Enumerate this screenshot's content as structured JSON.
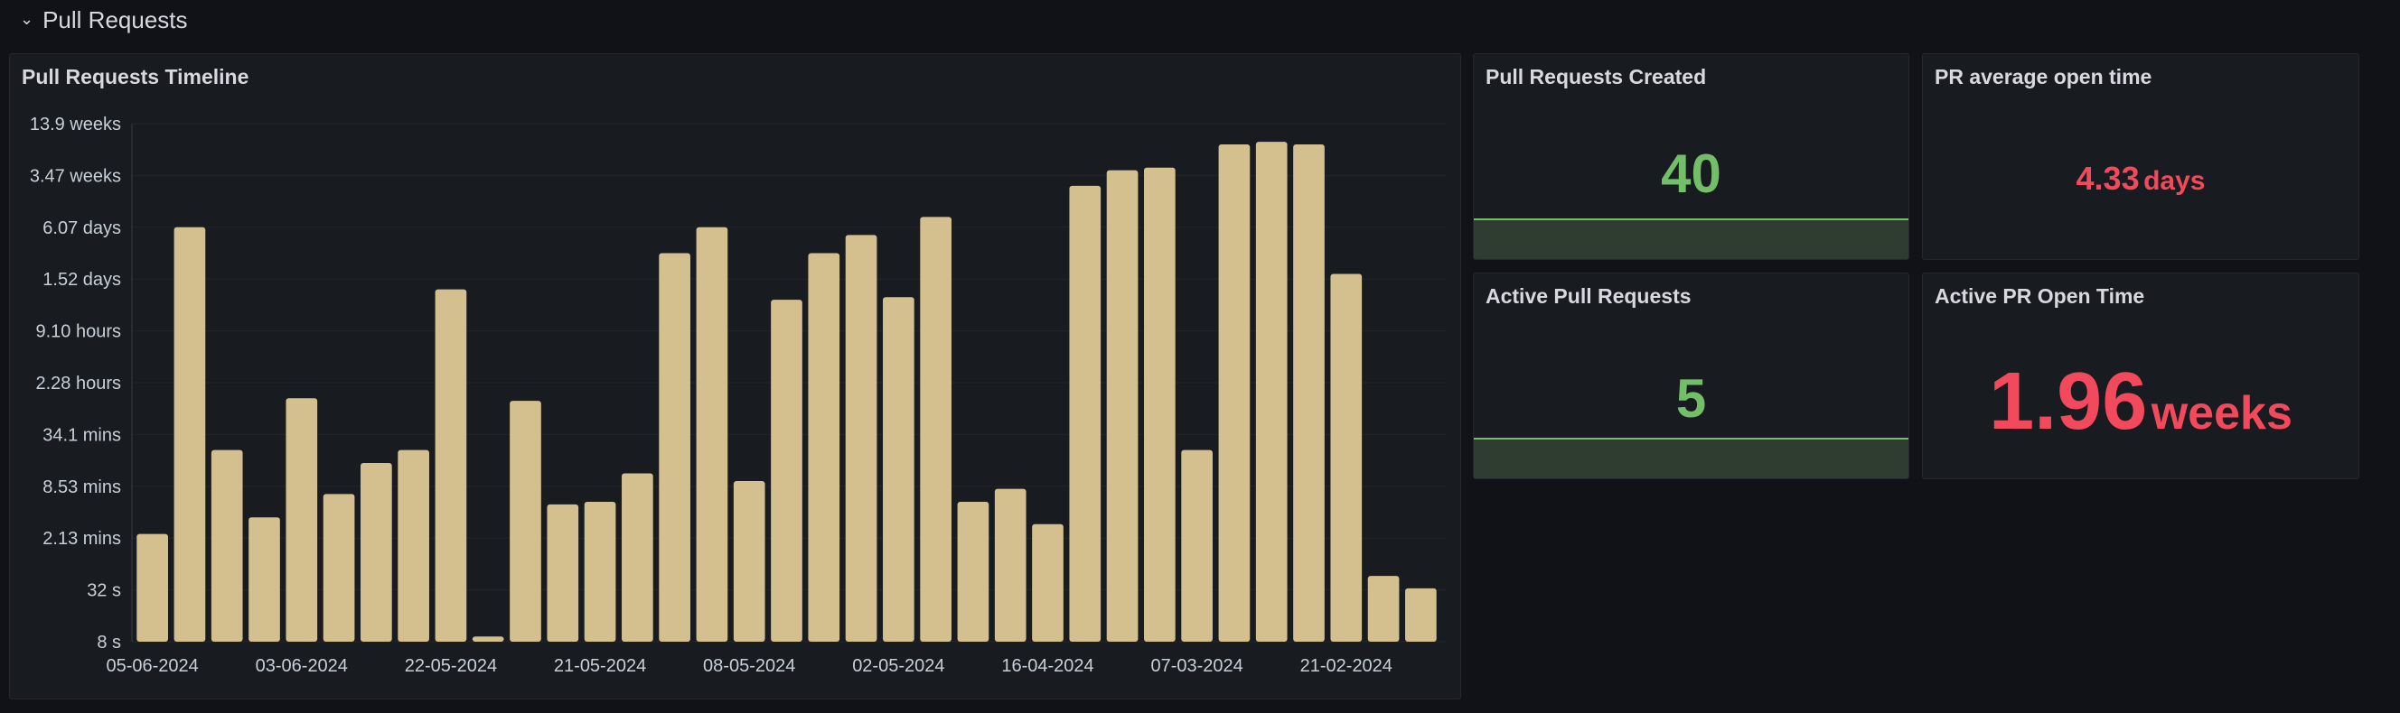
{
  "row": {
    "title": "Pull Requests"
  },
  "panels": {
    "timeline": {
      "title": "Pull Requests Timeline"
    },
    "created": {
      "title": "Pull Requests Created",
      "value": "40"
    },
    "avg_open": {
      "title": "PR average open time",
      "value": "4.33",
      "unit": "days"
    },
    "active": {
      "title": "Active Pull Requests",
      "value": "5"
    },
    "active_time": {
      "title": "Active PR Open Time",
      "value": "1.96",
      "unit": "weeks"
    }
  },
  "colors": {
    "bar": "#d4c08e",
    "green": "#73bf69",
    "red": "#f2495c",
    "spark_fill": "#2f3d31",
    "spark_line": "#73bf69"
  },
  "chart_data": {
    "type": "bar",
    "title": "Pull Requests Timeline",
    "y_scale": "log",
    "y_ticks": [
      "13.9 weeks",
      "3.47 weeks",
      "6.07 days",
      "1.52 days",
      "9.10 hours",
      "2.28 hours",
      "34.1 mins",
      "8.53 mins",
      "2.13 mins",
      "32 s",
      "8 s"
    ],
    "x_tick_labels": [
      "05-06-2024",
      "03-06-2024",
      "22-05-2024",
      "21-05-2024",
      "08-05-2024",
      "02-05-2024",
      "16-04-2024",
      "07-03-2024",
      "21-02-2024"
    ],
    "x_tick_positions": [
      0,
      4,
      8,
      12,
      16,
      20,
      24,
      28,
      32
    ],
    "bar_count": 35,
    "values_log4_from_8s": [
      2.08,
      8.0,
      3.7,
      2.4,
      4.7,
      2.85,
      3.45,
      3.7,
      6.8,
      0.1,
      4.65,
      2.65,
      2.7,
      3.25,
      7.5,
      8.0,
      3.1,
      6.6,
      7.5,
      7.85,
      6.65,
      8.2,
      2.7,
      2.95,
      2.27,
      8.8,
      9.1,
      9.15,
      3.7,
      9.6,
      9.65,
      9.6,
      7.1,
      1.27,
      1.03
    ]
  }
}
